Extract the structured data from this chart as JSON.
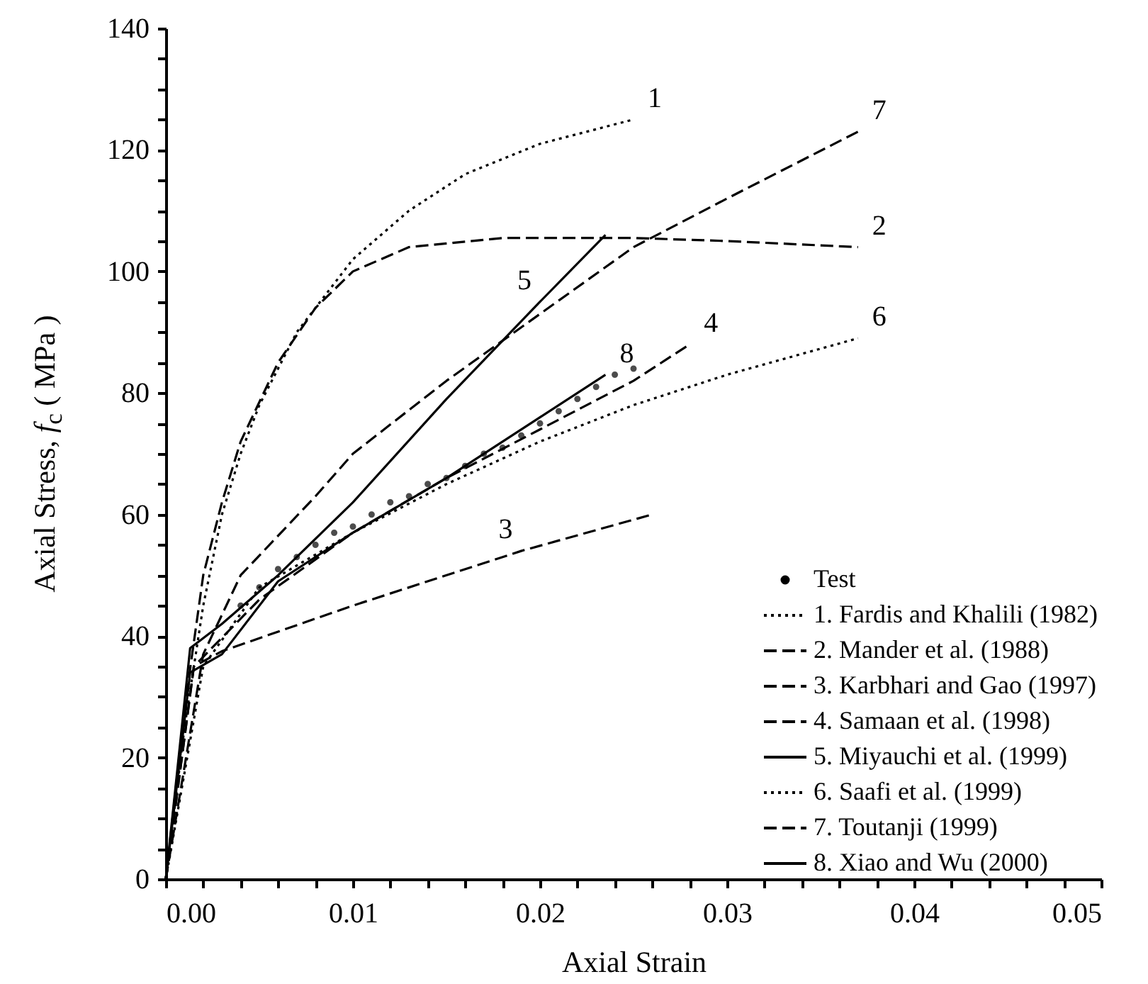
{
  "chart_data": {
    "type": "line",
    "xlabel": "Axial Strain",
    "ylabel": "Axial Stress, f$_{c}$ ( MPa )",
    "xlim": [
      0,
      0.05
    ],
    "ylim": [
      0,
      140
    ],
    "xticks": [
      {
        "value": 0,
        "label": "0.00"
      },
      {
        "value": 0.002,
        "label": null
      },
      {
        "value": 0.004,
        "label": null
      },
      {
        "value": 0.006,
        "label": null
      },
      {
        "value": 0.008,
        "label": null
      },
      {
        "value": 0.01,
        "label": "0.01"
      },
      {
        "value": 0.012,
        "label": null
      },
      {
        "value": 0.014,
        "label": null
      },
      {
        "value": 0.016,
        "label": null
      },
      {
        "value": 0.018,
        "label": null
      },
      {
        "value": 0.02,
        "label": "0.02"
      },
      {
        "value": 0.022,
        "label": null
      },
      {
        "value": 0.024,
        "label": null
      },
      {
        "value": 0.026,
        "label": null
      },
      {
        "value": 0.028,
        "label": null
      },
      {
        "value": 0.03,
        "label": "0.03"
      },
      {
        "value": 0.032,
        "label": null
      },
      {
        "value": 0.034,
        "label": null
      },
      {
        "value": 0.036,
        "label": null
      },
      {
        "value": 0.038,
        "label": null
      },
      {
        "value": 0.04,
        "label": "0.04"
      },
      {
        "value": 0.042,
        "label": null
      },
      {
        "value": 0.044,
        "label": null
      },
      {
        "value": 0.046,
        "label": null
      },
      {
        "value": 0.048,
        "label": null
      },
      {
        "value": 0.05,
        "label": "0.05"
      }
    ],
    "yticks": [
      0,
      {
        "value": 5,
        "label": null
      },
      {
        "value": 10,
        "label": null
      },
      {
        "value": 15,
        "label": null
      },
      20,
      {
        "value": 25,
        "label": null
      },
      {
        "value": 30,
        "label": null
      },
      {
        "value": 35,
        "label": null
      },
      40,
      {
        "value": 45,
        "label": null
      },
      {
        "value": 50,
        "label": null
      },
      {
        "value": 55,
        "label": null
      },
      60,
      {
        "value": 65,
        "label": null
      },
      {
        "value": 70,
        "label": null
      },
      {
        "value": 75,
        "label": null
      },
      80,
      {
        "value": 85,
        "label": null
      },
      {
        "value": 90,
        "label": null
      },
      {
        "value": 95,
        "label": null
      },
      100,
      {
        "value": 105,
        "label": null
      },
      {
        "value": 110,
        "label": null
      },
      {
        "value": 115,
        "label": null
      },
      120,
      {
        "value": 125,
        "label": null
      },
      {
        "value": 130,
        "label": null
      },
      {
        "value": 135,
        "label": null
      },
      140
    ],
    "grid": false,
    "legend": "bottom right",
    "series": [
      {
        "name": "Test",
        "type": "scatter",
        "marker": "circle",
        "color": "#000000",
        "x": [
          0.004,
          0.005,
          0.006,
          0.007,
          0.008,
          0.009,
          0.01,
          0.011,
          0.012,
          0.013,
          0.014,
          0.015,
          0.016,
          0.017,
          0.018,
          0.019,
          0.02,
          0.021,
          0.022,
          0.023,
          0.024,
          0.025
        ],
        "values": [
          45,
          48,
          51,
          53,
          55,
          57,
          58,
          60,
          62,
          63,
          65,
          66,
          68,
          70,
          71,
          73,
          75,
          77,
          79,
          81,
          83,
          84
        ]
      },
      {
        "name": "1. Fardis and Khalili (1982)",
        "type": "line",
        "line_style": "dotted",
        "color": "#000000",
        "x": [
          0,
          0.001,
          0.002,
          0.003,
          0.004,
          0.005,
          0.007,
          0.01,
          0.013,
          0.016,
          0.02,
          0.025
        ],
        "values": [
          0,
          25,
          45,
          60,
          70,
          78,
          90,
          102,
          110,
          116,
          121,
          125
        ]
      },
      {
        "name": "2. Mander et al. (1988)",
        "type": "line",
        "line_style": "dashed",
        "color": "#000000",
        "x": [
          0,
          0.001,
          0.002,
          0.003,
          0.004,
          0.006,
          0.008,
          0.01,
          0.013,
          0.018,
          0.025,
          0.03,
          0.037
        ],
        "values": [
          0,
          28,
          50,
          62,
          72,
          85,
          94,
          100,
          104,
          105.5,
          105.5,
          105,
          104
        ]
      },
      {
        "name": "3. Karbhari and Gao (1997)",
        "type": "line",
        "line_style": "dashed",
        "color": "#000000",
        "x": [
          0,
          0.0015,
          0.003,
          0.01,
          0.019,
          0.026
        ],
        "values": [
          0,
          35,
          37.5,
          45,
          54,
          60
        ]
      },
      {
        "name": "4. Samaan et al. (1998)",
        "type": "line",
        "line_style": "dashed",
        "color": "#000000",
        "x": [
          0,
          0.0015,
          0.005,
          0.01,
          0.015,
          0.02,
          0.025,
          0.028
        ],
        "values": [
          0,
          35,
          46,
          57,
          66,
          74,
          82,
          88
        ]
      },
      {
        "name": "5. Miyauchi et al. (1999)",
        "type": "line",
        "line_style": "solid",
        "color": "#000000",
        "x": [
          0,
          0.0013,
          0.003,
          0.006,
          0.01,
          0.015,
          0.02,
          0.0235
        ],
        "values": [
          0,
          38,
          42,
          50,
          62,
          79,
          95,
          106
        ]
      },
      {
        "name": "6. Saafi et al. (1999)",
        "type": "line",
        "line_style": "dotted",
        "color": "#000000",
        "x": [
          0,
          0.002,
          0.005,
          0.01,
          0.015,
          0.02,
          0.025,
          0.03,
          0.037
        ],
        "values": [
          0,
          35,
          48,
          57,
          65,
          72,
          78,
          83,
          89
        ]
      },
      {
        "name": "7. Toutanji (1999)",
        "type": "line",
        "line_style": "dashed",
        "color": "#000000",
        "x": [
          0,
          0.002,
          0.004,
          0.008,
          0.01,
          0.015,
          0.02,
          0.025,
          0.03,
          0.037
        ],
        "values": [
          0,
          37,
          50,
          63,
          70,
          82,
          93,
          104,
          112,
          123
        ]
      },
      {
        "name": "8. Xiao and Wu (2000)",
        "type": "line",
        "line_style": "solid",
        "color": "#000000",
        "x": [
          0,
          0.0013,
          0.003,
          0.006,
          0.01,
          0.015,
          0.02,
          0.0235
        ],
        "values": [
          0,
          34,
          37,
          49,
          57,
          66,
          76,
          83
        ]
      }
    ],
    "annotations": [
      {
        "text": "1",
        "x": 0.025,
        "y": 125
      },
      {
        "text": "2",
        "x": 0.037,
        "y": 104
      },
      {
        "text": "3",
        "x": 0.019,
        "y": 54
      },
      {
        "text": "4",
        "x": 0.028,
        "y": 88
      },
      {
        "text": "5",
        "x": 0.02,
        "y": 95
      },
      {
        "text": "6",
        "x": 0.037,
        "y": 89
      },
      {
        "text": "7",
        "x": 0.037,
        "y": 123
      },
      {
        "text": "8",
        "x": 0.0235,
        "y": 83
      }
    ]
  }
}
